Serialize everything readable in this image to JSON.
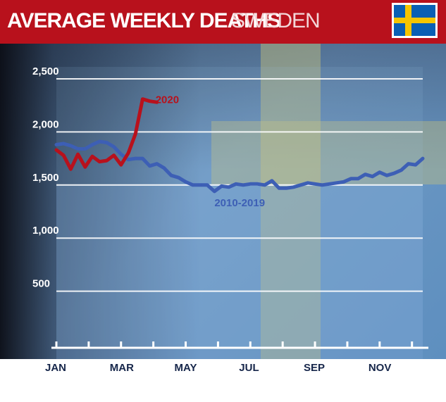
{
  "header": {
    "title": "AVERAGE WEEKLY DEATHS",
    "subtitle": "SWEDEN",
    "flag_icon": "sweden-flag-icon",
    "colors": {
      "banner": "#b8111c",
      "flag_blue": "#0a5fb4",
      "flag_yellow": "#f6c500"
    }
  },
  "chart_data": {
    "type": "line",
    "title": "AVERAGE WEEKLY DEATHS",
    "subtitle": "SWEDEN",
    "xlabel": "",
    "ylabel": "",
    "x_tick_labels": [
      "JAN",
      "MAR",
      "MAY",
      "JUL",
      "SEP",
      "NOV"
    ],
    "x_tick_weeks": [
      1,
      10,
      19,
      28,
      37,
      46
    ],
    "y_ticks": [
      500,
      1000,
      1500,
      2000,
      2500
    ],
    "y_tick_labels": [
      "500",
      "1,000",
      "1,500",
      "2,000",
      "2,500"
    ],
    "xlim": [
      1,
      52
    ],
    "ylim": [
      0,
      2500
    ],
    "grid": true,
    "series": [
      {
        "name": "2010-2019",
        "color": "#3d5fb5",
        "x": [
          1,
          2,
          3,
          4,
          5,
          6,
          7,
          8,
          9,
          10,
          11,
          12,
          13,
          14,
          15,
          16,
          17,
          18,
          19,
          20,
          21,
          22,
          23,
          24,
          25,
          26,
          27,
          28,
          29,
          30,
          31,
          32,
          33,
          34,
          35,
          36,
          37,
          38,
          39,
          40,
          41,
          42,
          43,
          44,
          45,
          46,
          47,
          48,
          49,
          50,
          51,
          52
        ],
        "y": [
          1880,
          1890,
          1870,
          1840,
          1840,
          1880,
          1910,
          1900,
          1860,
          1790,
          1740,
          1750,
          1750,
          1680,
          1700,
          1660,
          1590,
          1570,
          1530,
          1500,
          1500,
          1500,
          1440,
          1490,
          1480,
          1510,
          1500,
          1510,
          1510,
          1500,
          1540,
          1470,
          1470,
          1480,
          1500,
          1520,
          1510,
          1500,
          1510,
          1520,
          1530,
          1560,
          1560,
          1600,
          1580,
          1620,
          1590,
          1610,
          1640,
          1700,
          1690,
          1750
        ]
      },
      {
        "name": "2020",
        "color": "#b8111c",
        "x": [
          1,
          2,
          3,
          4,
          5,
          6,
          7,
          8,
          9,
          10,
          11,
          12,
          13,
          14,
          15
        ],
        "y": [
          1830,
          1780,
          1650,
          1790,
          1670,
          1770,
          1720,
          1730,
          1780,
          1690,
          1800,
          1980,
          2310,
          2290,
          2280
        ]
      }
    ]
  }
}
